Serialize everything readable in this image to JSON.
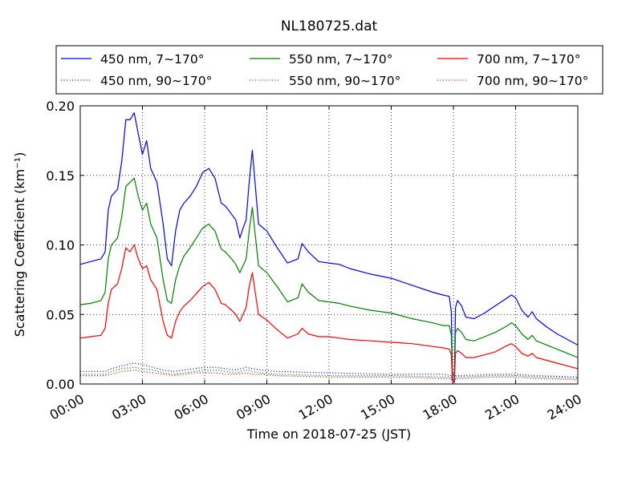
{
  "chart_data": {
    "type": "line",
    "title": "NL180725.dat",
    "xlabel": "Time on 2018-07-25 (JST)",
    "ylabel": "Scattering Coefficient (km⁻¹)",
    "xlim": [
      0,
      24
    ],
    "ylim": [
      0,
      0.2
    ],
    "x_ticks": [
      0,
      3,
      6,
      9,
      12,
      15,
      18,
      21,
      24
    ],
    "x_tick_labels": [
      "00:00",
      "03:00",
      "06:00",
      "09:00",
      "12:00",
      "15:00",
      "18:00",
      "21:00",
      "24:00"
    ],
    "y_ticks": [
      0,
      0.05,
      0.1,
      0.15,
      0.2
    ],
    "y_tick_labels": [
      "0.00",
      "0.05",
      "0.10",
      "0.15",
      "0.20"
    ],
    "grid": true,
    "legend_position": "top, above plot",
    "series": [
      {
        "name": "450 nm, 7∼170°",
        "color": "#0000ff",
        "style": "solid",
        "x": [
          0,
          0.5,
          1.0,
          1.2,
          1.35,
          1.5,
          1.8,
          2.0,
          2.2,
          2.4,
          2.6,
          2.8,
          3.0,
          3.2,
          3.4,
          3.7,
          4.0,
          4.2,
          4.4,
          4.6,
          4.8,
          5.0,
          5.3,
          5.6,
          5.9,
          6.2,
          6.5,
          6.8,
          7.0,
          7.3,
          7.5,
          7.7,
          7.85,
          8.0,
          8.15,
          8.3,
          8.6,
          9.0,
          9.5,
          10.0,
          10.5,
          10.7,
          11.0,
          11.5,
          12.0,
          12.5,
          13.0,
          14.0,
          15.0,
          16.0,
          17.0,
          17.5,
          17.8,
          17.9,
          17.95,
          18.05,
          18.1,
          18.2,
          18.4,
          18.6,
          19.0,
          19.5,
          20.0,
          20.5,
          20.8,
          21.0,
          21.3,
          21.6,
          21.8,
          22.0,
          22.5,
          23.0,
          23.5,
          24.0
        ],
        "values": [
          0.086,
          0.088,
          0.09,
          0.095,
          0.125,
          0.135,
          0.14,
          0.16,
          0.19,
          0.19,
          0.195,
          0.18,
          0.165,
          0.175,
          0.155,
          0.145,
          0.115,
          0.09,
          0.085,
          0.11,
          0.125,
          0.13,
          0.135,
          0.142,
          0.152,
          0.155,
          0.148,
          0.13,
          0.128,
          0.122,
          0.118,
          0.105,
          0.112,
          0.118,
          0.145,
          0.168,
          0.115,
          0.11,
          0.098,
          0.087,
          0.09,
          0.101,
          0.095,
          0.088,
          0.087,
          0.086,
          0.083,
          0.079,
          0.076,
          0.071,
          0.066,
          0.064,
          0.063,
          0.052,
          0.007,
          0.007,
          0.055,
          0.06,
          0.056,
          0.048,
          0.047,
          0.051,
          0.056,
          0.061,
          0.064,
          0.062,
          0.053,
          0.048,
          0.052,
          0.047,
          0.041,
          0.036,
          0.032,
          0.028
        ]
      },
      {
        "name": "450 nm, 90∼170°",
        "color": "#0000ff",
        "style": "dotted",
        "x": [
          0,
          1.2,
          1.5,
          2.0,
          2.6,
          3.0,
          3.5,
          4.0,
          4.5,
          5.0,
          5.5,
          6.0,
          6.5,
          7.0,
          7.5,
          8.0,
          8.3,
          8.7,
          9.5,
          12.0,
          15.0,
          17.5,
          17.9,
          17.95,
          18.05,
          18.1,
          18.4,
          20.0,
          21.0,
          22.0,
          24.0
        ],
        "values": [
          0.009,
          0.009,
          0.011,
          0.013,
          0.015,
          0.014,
          0.012,
          0.01,
          0.009,
          0.01,
          0.011,
          0.012,
          0.012,
          0.011,
          0.01,
          0.012,
          0.011,
          0.01,
          0.009,
          0.008,
          0.007,
          0.007,
          0.006,
          0.002,
          0.002,
          0.006,
          0.006,
          0.007,
          0.007,
          0.006,
          0.005
        ]
      },
      {
        "name": "550 nm, 7∼170°",
        "color": "#008000",
        "style": "solid",
        "x": [
          0,
          0.5,
          1.0,
          1.2,
          1.35,
          1.5,
          1.8,
          2.0,
          2.2,
          2.4,
          2.6,
          2.8,
          3.0,
          3.2,
          3.4,
          3.7,
          4.0,
          4.2,
          4.4,
          4.6,
          4.8,
          5.0,
          5.3,
          5.6,
          5.9,
          6.2,
          6.5,
          6.8,
          7.0,
          7.3,
          7.5,
          7.7,
          7.85,
          8.0,
          8.15,
          8.3,
          8.6,
          9.0,
          9.5,
          10.0,
          10.5,
          10.7,
          11.0,
          11.5,
          12.0,
          12.5,
          13.0,
          14.0,
          15.0,
          16.0,
          17.0,
          17.5,
          17.8,
          17.9,
          17.95,
          18.05,
          18.1,
          18.2,
          18.4,
          18.6,
          19.0,
          19.5,
          20.0,
          20.5,
          20.8,
          21.0,
          21.3,
          21.6,
          21.8,
          22.0,
          22.5,
          23.0,
          23.5,
          24.0
        ],
        "values": [
          0.057,
          0.058,
          0.06,
          0.066,
          0.09,
          0.1,
          0.105,
          0.12,
          0.142,
          0.145,
          0.148,
          0.135,
          0.125,
          0.13,
          0.115,
          0.105,
          0.075,
          0.06,
          0.058,
          0.075,
          0.085,
          0.092,
          0.098,
          0.105,
          0.112,
          0.115,
          0.11,
          0.097,
          0.095,
          0.09,
          0.086,
          0.08,
          0.085,
          0.09,
          0.11,
          0.127,
          0.085,
          0.08,
          0.07,
          0.059,
          0.062,
          0.072,
          0.066,
          0.06,
          0.059,
          0.058,
          0.056,
          0.053,
          0.051,
          0.047,
          0.044,
          0.042,
          0.042,
          0.035,
          0.005,
          0.005,
          0.037,
          0.04,
          0.037,
          0.032,
          0.031,
          0.034,
          0.037,
          0.041,
          0.044,
          0.042,
          0.036,
          0.032,
          0.035,
          0.031,
          0.028,
          0.025,
          0.022,
          0.019
        ]
      },
      {
        "name": "550 nm, 90∼170°",
        "color": "#008000",
        "style": "dotted",
        "x": [
          0,
          1.2,
          1.5,
          2.0,
          2.6,
          3.0,
          3.5,
          4.0,
          4.5,
          5.0,
          5.5,
          6.0,
          6.5,
          7.0,
          7.5,
          8.0,
          8.3,
          8.7,
          9.5,
          12.0,
          15.0,
          17.5,
          17.9,
          17.95,
          18.05,
          18.1,
          18.4,
          20.0,
          21.0,
          22.0,
          24.0
        ],
        "values": [
          0.007,
          0.007,
          0.009,
          0.011,
          0.012,
          0.011,
          0.01,
          0.008,
          0.007,
          0.008,
          0.009,
          0.01,
          0.01,
          0.009,
          0.008,
          0.01,
          0.009,
          0.008,
          0.007,
          0.006,
          0.006,
          0.005,
          0.005,
          0.002,
          0.002,
          0.005,
          0.005,
          0.006,
          0.006,
          0.005,
          0.004
        ]
      },
      {
        "name": "700 nm, 7∼170°",
        "color": "#ff0000",
        "style": "solid",
        "x": [
          0,
          0.5,
          1.0,
          1.2,
          1.35,
          1.5,
          1.8,
          2.0,
          2.2,
          2.4,
          2.6,
          2.8,
          3.0,
          3.2,
          3.4,
          3.7,
          4.0,
          4.2,
          4.4,
          4.6,
          4.8,
          5.0,
          5.3,
          5.6,
          5.9,
          6.2,
          6.5,
          6.8,
          7.0,
          7.3,
          7.5,
          7.7,
          7.85,
          8.0,
          8.15,
          8.3,
          8.6,
          9.0,
          9.5,
          10.0,
          10.5,
          10.7,
          11.0,
          11.5,
          12.0,
          12.5,
          13.0,
          14.0,
          15.0,
          16.0,
          17.0,
          17.5,
          17.8,
          17.9,
          17.95,
          18.05,
          18.1,
          18.2,
          18.4,
          18.6,
          19.0,
          19.5,
          20.0,
          20.5,
          20.8,
          21.0,
          21.3,
          21.6,
          21.8,
          22.0,
          22.5,
          23.0,
          23.5,
          24.0
        ],
        "values": [
          0.033,
          0.034,
          0.035,
          0.04,
          0.058,
          0.068,
          0.072,
          0.083,
          0.098,
          0.095,
          0.1,
          0.09,
          0.083,
          0.085,
          0.075,
          0.068,
          0.045,
          0.035,
          0.033,
          0.045,
          0.052,
          0.056,
          0.06,
          0.065,
          0.07,
          0.073,
          0.068,
          0.058,
          0.057,
          0.053,
          0.05,
          0.045,
          0.05,
          0.055,
          0.07,
          0.08,
          0.05,
          0.046,
          0.039,
          0.033,
          0.036,
          0.04,
          0.036,
          0.034,
          0.034,
          0.033,
          0.032,
          0.031,
          0.03,
          0.029,
          0.027,
          0.026,
          0.025,
          0.021,
          0.003,
          0.003,
          0.022,
          0.024,
          0.022,
          0.019,
          0.019,
          0.021,
          0.023,
          0.027,
          0.029,
          0.027,
          0.022,
          0.02,
          0.022,
          0.019,
          0.017,
          0.015,
          0.013,
          0.011
        ]
      },
      {
        "name": "700 nm, 90∼170°",
        "color": "#ff0000",
        "style": "dotted",
        "x": [
          0,
          1.2,
          1.5,
          2.0,
          2.6,
          3.0,
          3.5,
          4.0,
          4.5,
          5.0,
          5.5,
          6.0,
          6.5,
          7.0,
          7.5,
          8.0,
          8.3,
          8.7,
          9.5,
          12.0,
          15.0,
          17.5,
          17.9,
          17.95,
          18.05,
          18.1,
          18.4,
          20.0,
          21.0,
          22.0,
          24.0
        ],
        "values": [
          0.006,
          0.006,
          0.007,
          0.009,
          0.01,
          0.009,
          0.008,
          0.007,
          0.006,
          0.007,
          0.008,
          0.008,
          0.008,
          0.007,
          0.007,
          0.008,
          0.007,
          0.007,
          0.006,
          0.005,
          0.005,
          0.004,
          0.004,
          0.001,
          0.001,
          0.004,
          0.004,
          0.005,
          0.005,
          0.004,
          0.003
        ]
      }
    ]
  }
}
